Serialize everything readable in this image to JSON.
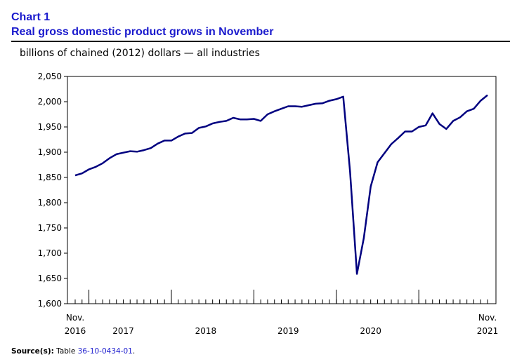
{
  "header": {
    "chart_number": "Chart 1",
    "title": "Real gross domestic product grows in November"
  },
  "source": {
    "label": "Source(s):",
    "prefix": "Table",
    "table_id": "36-10-0434-01",
    "suffix": "."
  },
  "colors": {
    "line": "#000080",
    "title": "#1a1acd"
  },
  "chart_data": {
    "type": "line",
    "title": "Real gross domestic product grows in November",
    "ylabel": "billions of chained (2012) dollars — all industries",
    "xlabel": "",
    "ylim": [
      1600,
      2050
    ],
    "yticks": [
      "1,600",
      "1,650",
      "1,700",
      "1,750",
      "1,800",
      "1,850",
      "1,900",
      "1,950",
      "2,000",
      "2,050"
    ],
    "grid": false,
    "legend": "none",
    "x_start": "Nov. 2016",
    "x_end": "Nov. 2021",
    "x_labels": [
      {
        "month_index": 0,
        "line1": "Nov.",
        "line2": "2016"
      },
      {
        "month_index": 7,
        "line1": "",
        "line2": "2017"
      },
      {
        "month_index": 19,
        "line1": "",
        "line2": "2018"
      },
      {
        "month_index": 31,
        "line1": "",
        "line2": "2019"
      },
      {
        "month_index": 43,
        "line1": "",
        "line2": "2020"
      },
      {
        "month_index": 60,
        "line1": "Nov.",
        "line2": "2021"
      }
    ],
    "year_boundaries": [
      2,
      14,
      26,
      38,
      50
    ],
    "series": [
      {
        "name": "Real GDP, all industries",
        "values": [
          1854,
          1858,
          1866,
          1871,
          1878,
          1888,
          1896,
          1899,
          1902,
          1901,
          1904,
          1908,
          1917,
          1923,
          1923,
          1931,
          1937,
          1938,
          1948,
          1951,
          1957,
          1960,
          1962,
          1968,
          1965,
          1965,
          1966,
          1962,
          1975,
          1981,
          1986,
          1991,
          1991,
          1990,
          1993,
          1996,
          1997,
          2002,
          2005,
          2010,
          1862,
          1659,
          1730,
          1832,
          1880,
          1898,
          1916,
          1928,
          1941,
          1941,
          1950,
          1953,
          1977,
          1956,
          1946,
          1962,
          1969,
          1981,
          1986,
          2002,
          2013
        ]
      }
    ]
  }
}
